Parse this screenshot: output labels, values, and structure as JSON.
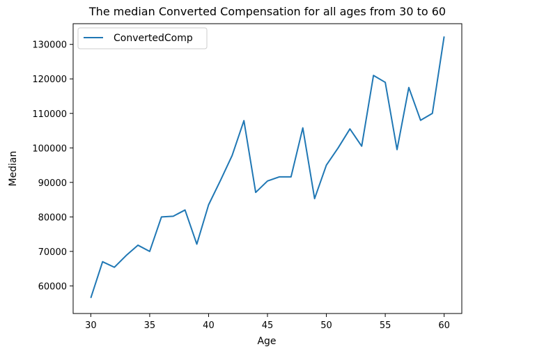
{
  "chart_data": {
    "type": "line",
    "title": "The median Converted Compensation for all ages from 30 to 60",
    "xlabel": "Age",
    "ylabel": "Median",
    "xlim": [
      28.5,
      61.5
    ],
    "ylim": [
      52000,
      136000
    ],
    "xticks": [
      30,
      35,
      40,
      45,
      50,
      55,
      60
    ],
    "yticks": [
      60000,
      70000,
      80000,
      90000,
      100000,
      110000,
      120000,
      130000
    ],
    "grid": false,
    "legend": "top-left",
    "series": [
      {
        "name": "ConvertedComp",
        "color": "#1f77b4",
        "x": [
          30,
          31,
          32,
          33,
          34,
          35,
          36,
          37,
          38,
          39,
          40,
          41,
          42,
          43,
          44,
          45,
          46,
          47,
          48,
          49,
          50,
          51,
          52,
          53,
          54,
          55,
          56,
          57,
          58,
          59,
          60
        ],
        "y": [
          56500,
          67000,
          65400,
          68800,
          71800,
          70000,
          80000,
          80200,
          82000,
          72100,
          83500,
          90500,
          97800,
          107900,
          87100,
          90400,
          91600,
          91600,
          105800,
          85300,
          95000,
          100000,
          105500,
          100500,
          121000,
          119000,
          99500,
          117500,
          108000,
          110000,
          132300
        ]
      }
    ]
  }
}
